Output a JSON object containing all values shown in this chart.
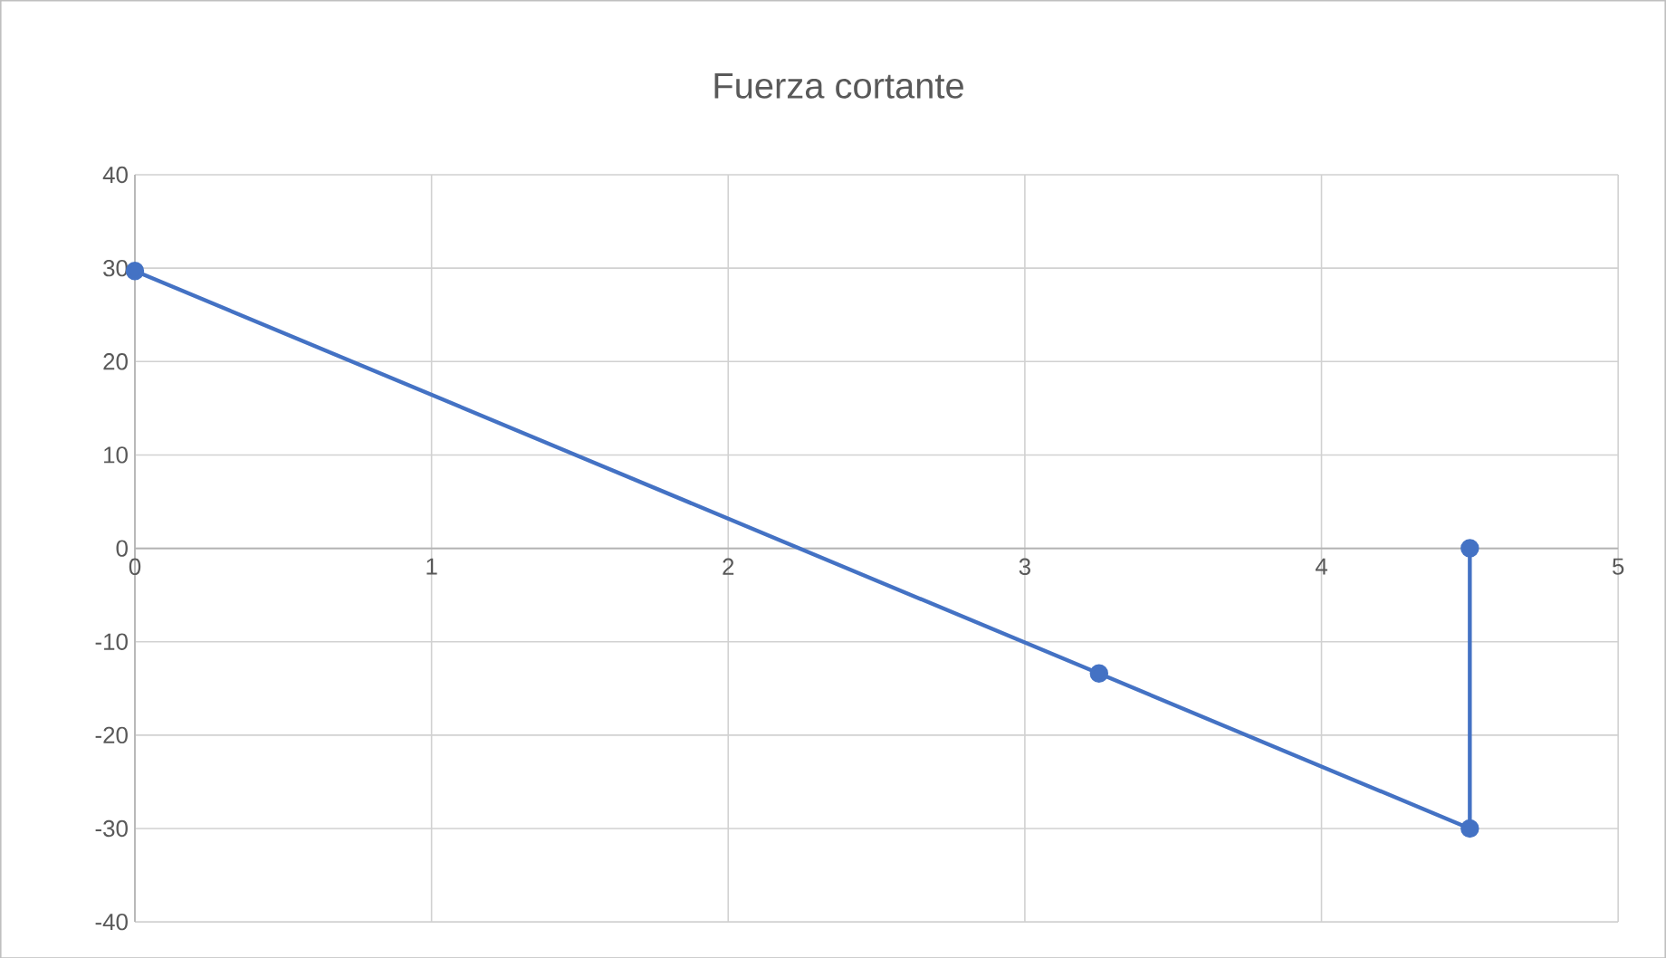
{
  "chart_data": {
    "type": "line",
    "title": "Fuerza cortante",
    "x": [
      0,
      3.25,
      4.5,
      4.5
    ],
    "series": [
      {
        "color": "#4472c4",
        "values": [
          29.7,
          -13.4,
          -30,
          0
        ]
      }
    ],
    "xlim": [
      0,
      5
    ],
    "xticks": [
      0,
      1,
      2,
      3,
      4,
      5
    ],
    "ylim": [
      -40,
      40
    ],
    "yticks": [
      -40,
      -30,
      -20,
      -10,
      0,
      10,
      20,
      30,
      40
    ],
    "grid": true,
    "marker": "circle",
    "line_style": "solid"
  }
}
